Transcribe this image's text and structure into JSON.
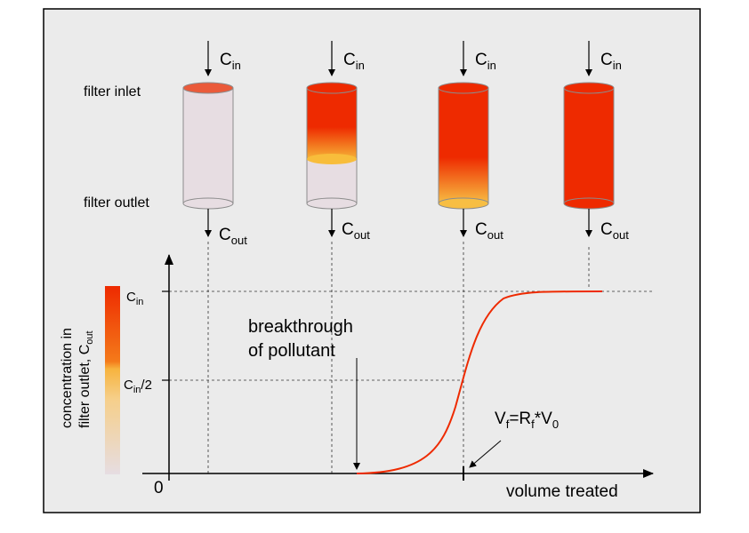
{
  "labels": {
    "filter_inlet": "filter inlet",
    "filter_outlet": "filter outlet",
    "c_in_base": "C",
    "c_in_sub": "in",
    "c_out_base": "C",
    "c_out_sub": "out",
    "half_suffix": "/2",
    "breakthrough_line1": "breakthrough",
    "breakthrough_line2": "of pollutant",
    "vf_V": "V",
    "vf_f": "f",
    "vf_eq_R": "=R",
    "vf_f2": "f",
    "vf_star_V": "*V",
    "vf_0": "0",
    "origin": "0",
    "x_axis": "volume treated",
    "y_axis_line1": "concentration in",
    "y_axis_line2_base": "filter outlet, C",
    "y_axis_line2_sub": "out"
  },
  "colors": {
    "panel_bg": "#ebebeb",
    "saturated": "#ee2a00",
    "front": "#f6a021",
    "clean": "#e7dde2",
    "curve": "#ee2a00"
  },
  "filters": [
    {
      "stage": "fresh",
      "saturated_fraction": 0.0
    },
    {
      "stage": "partially saturated",
      "saturated_fraction": 0.55
    },
    {
      "stage": "near breakthrough",
      "saturated_fraction": 0.9
    },
    {
      "stage": "fully saturated",
      "saturated_fraction": 1.0
    }
  ]
}
